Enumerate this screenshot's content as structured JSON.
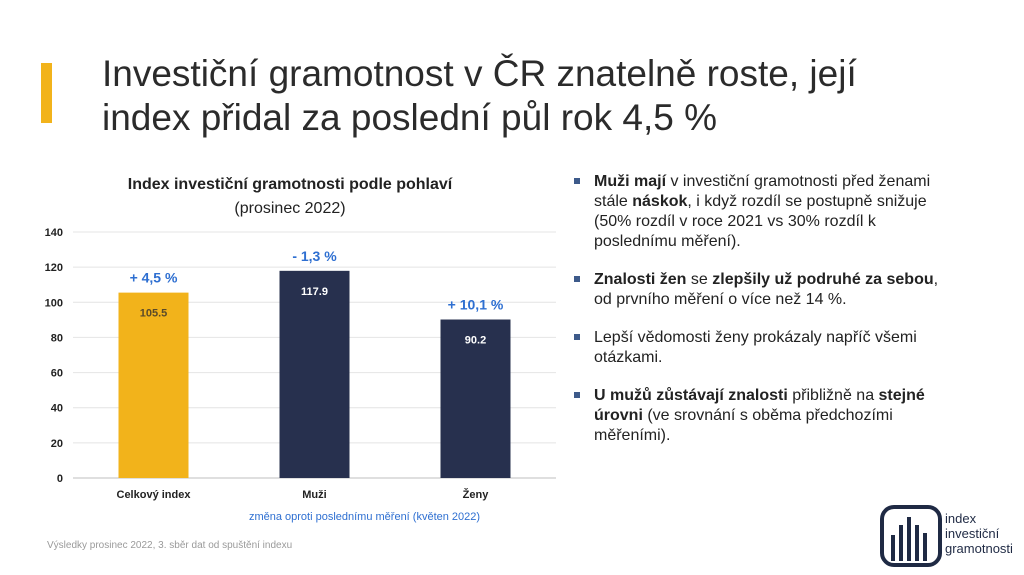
{
  "title_lines": [
    "Investiční gramotnost v ČR znatelně roste, její",
    "index přidal za poslední půl rok 4,5 %"
  ],
  "colors": {
    "accent": "#F2B31B",
    "navy": "#27304E",
    "blue_text": "#2E6FD1",
    "grid": "#e4e4e4"
  },
  "chart_data": {
    "type": "bar",
    "title": "Index investiční gramotnosti podle pohlaví",
    "subtitle": "(prosinec 2022)",
    "categories": [
      "Celkový index",
      "Muži",
      "Ženy"
    ],
    "values": [
      105.5,
      117.9,
      90.2
    ],
    "value_labels": [
      "105.5",
      "117.9",
      "90.2"
    ],
    "bar_colors": [
      "#F2B31B",
      "#27304E",
      "#27304E"
    ],
    "change_labels": [
      "+ 4,5 %",
      "- 1,3 %",
      "+ 10,1 %"
    ],
    "change_note": "změna oproti poslednímu měření (květen 2022)",
    "ylim": [
      0,
      140
    ],
    "yticks": [
      0,
      20,
      40,
      60,
      80,
      100,
      120,
      140
    ],
    "grid": true,
    "legend": "none"
  },
  "bullets": [
    [
      {
        "t": "Muži mají",
        "b": true
      },
      {
        "t": " v investiční gramotnosti před ženami stále ",
        "b": false
      },
      {
        "t": "náskok",
        "b": true
      },
      {
        "t": ", i když rozdíl se postupně snižuje (50% rozdíl v roce 2021 vs 30% rozdíl k poslednímu měření).",
        "b": false
      }
    ],
    [
      {
        "t": "Znalosti žen",
        "b": true
      },
      {
        "t": " se ",
        "b": false
      },
      {
        "t": "zlepšily už podruhé za sebou",
        "b": true
      },
      {
        "t": ", od prvního měření o více než 14 %.",
        "b": false
      }
    ],
    [
      {
        "t": "Lepší vědomosti ženy prokázaly napříč všemi otázkami.",
        "b": false
      }
    ],
    [
      {
        "t": "U mužů zůstávají znalosti",
        "b": true
      },
      {
        "t": " přibližně na ",
        "b": false
      },
      {
        "t": "stejné úrovni",
        "b": true
      },
      {
        "t": " (ve srovnání s oběma předchozími měřeními).",
        "b": false
      }
    ]
  ],
  "footer": "Výsledky prosinec 2022, 3. sběr dat od spuštění indexu",
  "logo": {
    "icon": "bar-chart-logo-icon",
    "lines": [
      "index",
      "investiční",
      "gramotnosti"
    ]
  }
}
